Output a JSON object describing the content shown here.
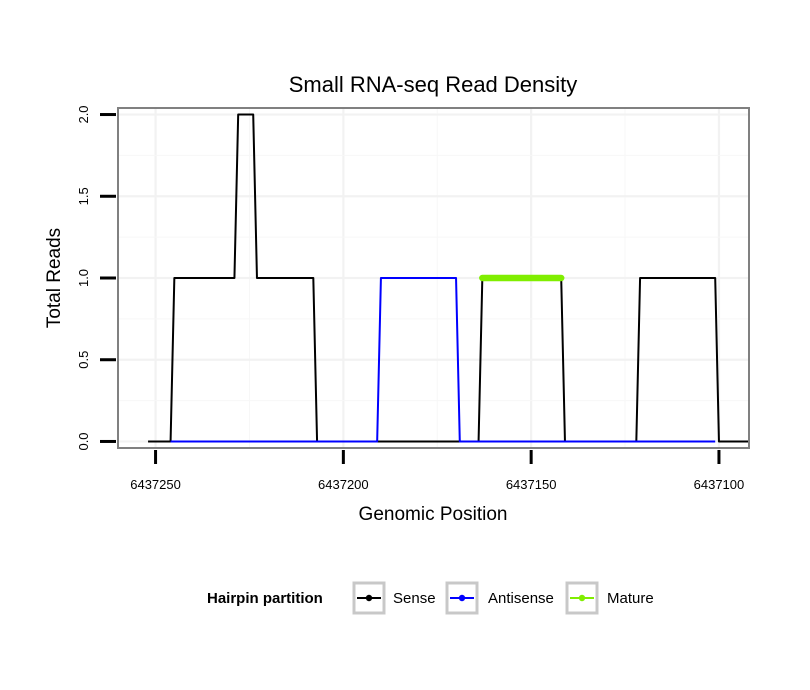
{
  "chart_data": {
    "type": "line",
    "title": "Small RNA-seq Read Density",
    "xlabel": "Genomic Position",
    "ylabel": "Total Reads",
    "xlim": [
      6437260,
      6437092
    ],
    "ylim": [
      -0.04,
      2.04
    ],
    "x_ticks": [
      6437250,
      6437200,
      6437150,
      6437100
    ],
    "x_tick_labels": [
      "6437250",
      "6437200",
      "6437150",
      "6437100"
    ],
    "y_ticks": [
      0.0,
      0.5,
      1.0,
      1.5,
      2.0
    ],
    "y_tick_labels": [
      "0.0",
      "0.5",
      "1.0",
      "1.5",
      "2.0"
    ],
    "grid": true,
    "legend": {
      "title": "Hairpin partition",
      "position": "bottom",
      "entries": [
        "Sense",
        "Antisense",
        "Mature"
      ]
    },
    "series": [
      {
        "name": "Sense",
        "color": "#000000",
        "x": [
          6437252,
          6437246,
          6437245,
          6437229,
          6437228,
          6437227,
          6437225,
          6437224,
          6437223,
          6437208,
          6437207,
          6437164,
          6437163,
          6437142,
          6437141,
          6437122,
          6437121,
          6437101,
          6437100,
          6437092
        ],
        "y": [
          0,
          0,
          1,
          1,
          2,
          2,
          2,
          2,
          1,
          1,
          0,
          0,
          1,
          1,
          0,
          0,
          1,
          1,
          0,
          0
        ]
      },
      {
        "name": "Antisense",
        "color": "#0000ff",
        "x": [
          6437246,
          6437208,
          6437191,
          6437190,
          6437170,
          6437169,
          6437164,
          6437142,
          6437122,
          6437101
        ],
        "y": [
          0,
          0,
          0,
          1,
          1,
          0,
          0,
          0,
          0,
          0
        ]
      },
      {
        "name": "Mature",
        "color": "#80ee00",
        "x": [
          6437163,
          6437142
        ],
        "y": [
          1,
          1
        ]
      }
    ]
  }
}
